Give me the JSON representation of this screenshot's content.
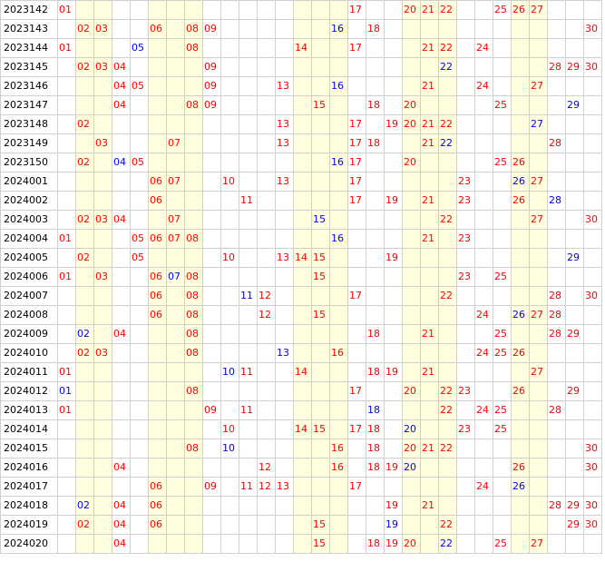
{
  "colors": {
    "red": "#ff0000",
    "blue": "#0000ff",
    "band": "#ffffe0",
    "grid": "#d0d0d0"
  },
  "shaded_columns": [
    2,
    3,
    6,
    7,
    8,
    14,
    15,
    16,
    20,
    21,
    22,
    26,
    27
  ],
  "rows": [
    {
      "issue": "2023142",
      "red": [
        1,
        17,
        20,
        21,
        22,
        25,
        26,
        27
      ],
      "blue": []
    },
    {
      "issue": "2023143",
      "red": [
        2,
        3,
        6,
        8,
        9,
        18,
        30
      ],
      "blue": [
        16
      ]
    },
    {
      "issue": "2023144",
      "red": [
        1,
        8,
        14,
        17,
        21,
        22,
        24
      ],
      "blue": [
        5
      ]
    },
    {
      "issue": "2023145",
      "red": [
        2,
        3,
        4,
        9,
        28,
        29,
        30
      ],
      "blue": [
        22
      ]
    },
    {
      "issue": "2023146",
      "red": [
        4,
        5,
        9,
        13,
        21,
        24,
        27
      ],
      "blue": [
        16
      ]
    },
    {
      "issue": "2023147",
      "red": [
        4,
        8,
        9,
        15,
        18,
        20,
        25
      ],
      "blue": [
        29
      ]
    },
    {
      "issue": "2023148",
      "red": [
        2,
        13,
        17,
        19,
        20,
        21,
        22
      ],
      "blue": [
        27
      ]
    },
    {
      "issue": "2023149",
      "red": [
        3,
        7,
        13,
        17,
        18,
        21,
        28
      ],
      "blue": [
        22
      ]
    },
    {
      "issue": "2023150",
      "red": [
        2,
        5,
        17,
        20,
        25,
        26
      ],
      "blue": [
        4,
        16
      ]
    },
    {
      "issue": "2024001",
      "red": [
        6,
        7,
        10,
        13,
        17,
        23,
        27
      ],
      "blue": [
        26
      ]
    },
    {
      "issue": "2024002",
      "red": [
        6,
        11,
        17,
        19,
        21,
        23,
        26
      ],
      "blue": [
        28
      ]
    },
    {
      "issue": "2024003",
      "red": [
        2,
        3,
        4,
        7,
        22,
        27,
        30
      ],
      "blue": [
        15
      ]
    },
    {
      "issue": "2024004",
      "red": [
        1,
        5,
        6,
        7,
        8,
        21,
        23
      ],
      "blue": [
        16
      ]
    },
    {
      "issue": "2024005",
      "red": [
        2,
        5,
        10,
        13,
        14,
        15,
        19
      ],
      "blue": [
        29
      ]
    },
    {
      "issue": "2024006",
      "red": [
        1,
        3,
        6,
        8,
        15,
        23,
        25
      ],
      "blue": [
        7
      ]
    },
    {
      "issue": "2024007",
      "red": [
        6,
        8,
        12,
        17,
        22,
        28,
        30
      ],
      "blue": [
        11
      ]
    },
    {
      "issue": "2024008",
      "red": [
        6,
        8,
        12,
        15,
        24,
        27,
        28
      ],
      "blue": [
        26
      ]
    },
    {
      "issue": "2024009",
      "red": [
        4,
        8,
        18,
        21,
        25,
        28,
        29
      ],
      "blue": [
        2
      ]
    },
    {
      "issue": "2024010",
      "red": [
        2,
        3,
        8,
        16,
        24,
        25,
        26
      ],
      "blue": [
        13
      ]
    },
    {
      "issue": "2024011",
      "red": [
        1,
        11,
        14,
        18,
        19,
        21,
        27
      ],
      "blue": [
        10
      ]
    },
    {
      "issue": "2024012",
      "red": [
        8,
        17,
        20,
        22,
        23,
        26,
        29
      ],
      "blue": [
        1
      ]
    },
    {
      "issue": "2024013",
      "red": [
        1,
        9,
        11,
        22,
        24,
        25,
        28
      ],
      "blue": [
        18
      ]
    },
    {
      "issue": "2024014",
      "red": [
        10,
        14,
        15,
        17,
        18,
        23,
        25
      ],
      "blue": [
        20
      ]
    },
    {
      "issue": "2024015",
      "red": [
        8,
        16,
        18,
        20,
        21,
        22,
        30
      ],
      "blue": [
        10
      ]
    },
    {
      "issue": "2024016",
      "red": [
        4,
        12,
        16,
        18,
        19,
        26,
        30
      ],
      "blue": [
        20
      ]
    },
    {
      "issue": "2024017",
      "red": [
        6,
        9,
        11,
        12,
        13,
        17,
        24
      ],
      "blue": [
        26
      ]
    },
    {
      "issue": "2024018",
      "red": [
        4,
        6,
        19,
        21,
        28,
        29,
        30
      ],
      "blue": [
        2
      ]
    },
    {
      "issue": "2024019",
      "red": [
        2,
        4,
        6,
        15,
        22,
        29,
        30
      ],
      "blue": [
        19
      ]
    },
    {
      "issue": "2024020",
      "red": [
        4,
        15,
        18,
        19,
        20,
        25,
        27
      ],
      "blue": [
        22
      ]
    }
  ]
}
